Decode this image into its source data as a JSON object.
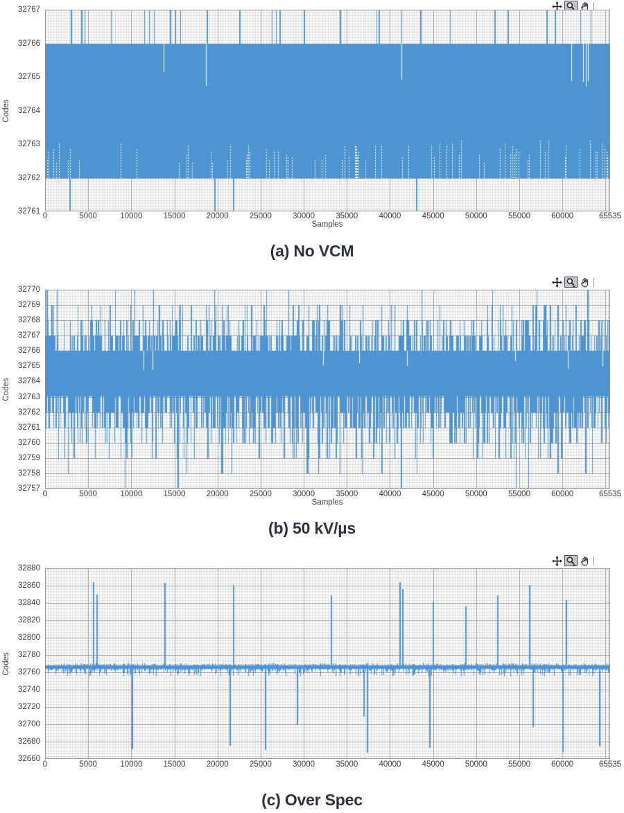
{
  "colors": {
    "trace": "#4d94d1",
    "grid_minor": "#dddddd",
    "grid_major": "#9a9a9a",
    "plot_border": "#8c8c8c",
    "axis_text": "#3d3d3d",
    "caption_text": "#2b3340",
    "toolbar_pressed_bg": "#c4c4c4"
  },
  "toolbar": {
    "tools": [
      {
        "name": "crosshair-tool",
        "icon": "crosshair-icon",
        "pressed": false
      },
      {
        "name": "zoom-tool",
        "icon": "magnifier-icon",
        "pressed": true
      },
      {
        "name": "pan-tool",
        "icon": "hand-icon",
        "pressed": false
      }
    ]
  },
  "chart_data": [
    {
      "type": "line",
      "caption": "(a) No VCM",
      "xlabel": "Samples",
      "ylabel": "Codes",
      "xlim": [
        0,
        65535
      ],
      "ylim": [
        32761,
        32767
      ],
      "grid": true,
      "x_ticks": [
        0,
        5000,
        10000,
        15000,
        20000,
        25000,
        30000,
        35000,
        40000,
        45000,
        50000,
        55000,
        60000,
        65535
      ],
      "y_ticks": [
        32767,
        32766,
        32765,
        32764,
        32763,
        32762,
        32761
      ],
      "series": {
        "description": "ADC output-code histogram trace: solid band of codes 32762-32766 with sparse excursions",
        "solid_band": [
          32762,
          32766
        ],
        "up_spike_code": 32767,
        "up_spike_samples": [
          3000,
          4200,
          4600,
          7600,
          11500,
          12100,
          12600,
          14500,
          15100,
          15700,
          18700,
          22500,
          26300,
          26800,
          27200,
          30000,
          34200,
          38400,
          38700,
          41300,
          43500,
          47000,
          52100,
          53600,
          58100,
          59100,
          62100,
          63300
        ],
        "down_spike_code": 32761,
        "down_spike_samples": [
          2800,
          19600,
          21800,
          43000
        ],
        "upper_gap_samples": [
          13750,
          18650,
          41300,
          61000,
          62400,
          62700,
          63000
        ],
        "lower_gap_density": {
          "count": 85,
          "from": 32762,
          "to": 32763
        },
        "seed": 7
      }
    },
    {
      "type": "line",
      "caption": "(b) 50 kV/µs",
      "xlabel": "Samples",
      "ylabel": "Codes",
      "xlim": [
        0,
        65535
      ],
      "ylim": [
        32757,
        32770
      ],
      "grid": true,
      "x_ticks": [
        0,
        5000,
        10000,
        15000,
        20000,
        25000,
        30000,
        35000,
        40000,
        45000,
        50000,
        55000,
        60000,
        65535
      ],
      "y_ticks": [
        32770,
        32769,
        32768,
        32767,
        32766,
        32765,
        32764,
        32763,
        32762,
        32761,
        32760,
        32759,
        32758,
        32757
      ],
      "series": {
        "description": "Solid band 32763-32766 with excursion density decreasing toward 32770 and 32757 (estimated spike counts per code level)",
        "solid_band": [
          32763,
          32766
        ],
        "up_levels": [
          {
            "code": 32767,
            "count": 320
          },
          {
            "code": 32768,
            "count": 150
          },
          {
            "code": 32769,
            "count": 58
          },
          {
            "code": 32770,
            "count": 12
          }
        ],
        "down_levels": [
          {
            "code": 32762,
            "count": 400
          },
          {
            "code": 32761,
            "count": 230
          },
          {
            "code": 32760,
            "count": 100
          },
          {
            "code": 32759,
            "count": 48
          },
          {
            "code": 32758,
            "count": 16
          },
          {
            "code": 32757,
            "count": 5
          }
        ],
        "upper_gap_count": 8,
        "seed": 11
      }
    },
    {
      "type": "line",
      "caption": "(c) Over Spec",
      "xlabel": "",
      "ylabel": "Codes",
      "xlim": [
        0,
        65535
      ],
      "ylim": [
        32660,
        32880
      ],
      "grid": true,
      "x_ticks": [
        0,
        5000,
        10000,
        15000,
        20000,
        25000,
        30000,
        35000,
        40000,
        45000,
        50000,
        55000,
        60000,
        65535
      ],
      "y_ticks": [
        32880,
        32860,
        32840,
        32820,
        32800,
        32780,
        32760,
        32740,
        32720,
        32700,
        32680,
        32660
      ],
      "series": {
        "description": "Noisy baseline near code 32766 with isolated glitch spikes (sample, code)",
        "baseline": 32766,
        "baseline_band": [
          32764,
          32768
        ],
        "noise_up_max": 3,
        "noise_down_max": 9,
        "up_spikes": [
          [
            5600,
            32864
          ],
          [
            6000,
            32850
          ],
          [
            13900,
            32863
          ],
          [
            21900,
            32861
          ],
          [
            33200,
            32849
          ],
          [
            41200,
            32864
          ],
          [
            41500,
            32856
          ],
          [
            45000,
            32842
          ],
          [
            48800,
            32836
          ],
          [
            52500,
            32849
          ],
          [
            56200,
            32861
          ],
          [
            60500,
            32843
          ]
        ],
        "down_spikes": [
          [
            10100,
            32672
          ],
          [
            21500,
            32676
          ],
          [
            25600,
            32671
          ],
          [
            29300,
            32700
          ],
          [
            37000,
            32710
          ],
          [
            37400,
            32668
          ],
          [
            44600,
            32674
          ],
          [
            56600,
            32698
          ],
          [
            60100,
            32669
          ],
          [
            64300,
            32675
          ]
        ],
        "seed": 13
      }
    }
  ]
}
